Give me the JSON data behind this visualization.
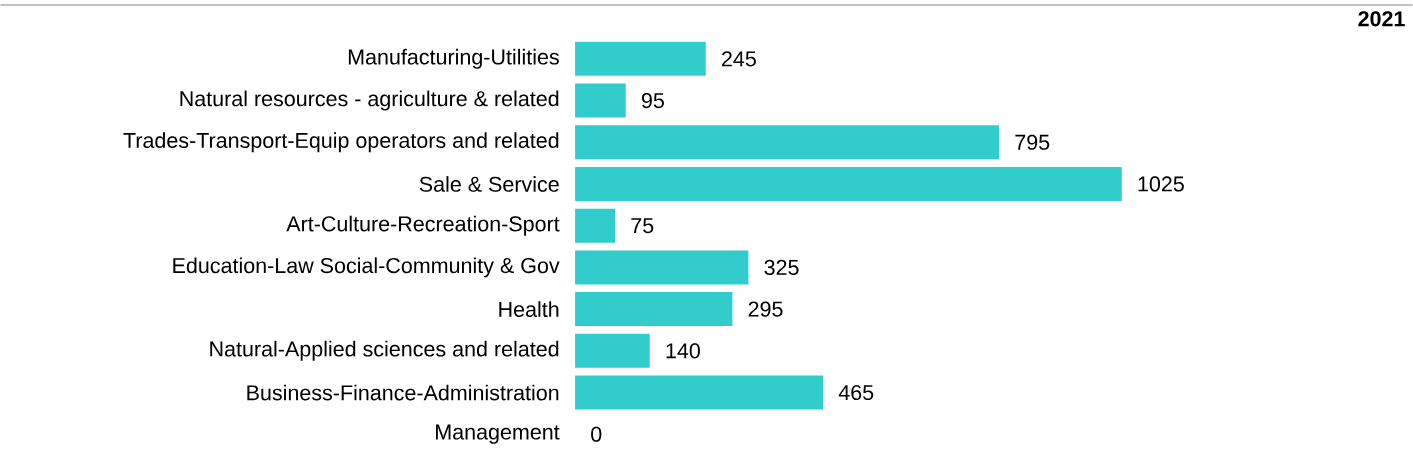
{
  "chart_data": {
    "type": "bar",
    "orientation": "horizontal",
    "title": "2021",
    "categories": [
      "Manufacturing-Utilities",
      "Natural resources - agriculture & related",
      "Trades-Transport-Equip operators and related",
      "Sale & Service",
      "Art-Culture-Recreation-Sport",
      "Education-Law Social-Community & Gov",
      "Health",
      "Natural-Applied sciences and related",
      "Business-Finance-Administration",
      "Management"
    ],
    "values": [
      245,
      95,
      795,
      1025,
      75,
      325,
      295,
      140,
      465,
      0
    ],
    "color": "#33cccc",
    "data_labels": true,
    "tick_labels": "y",
    "grid": false
  }
}
